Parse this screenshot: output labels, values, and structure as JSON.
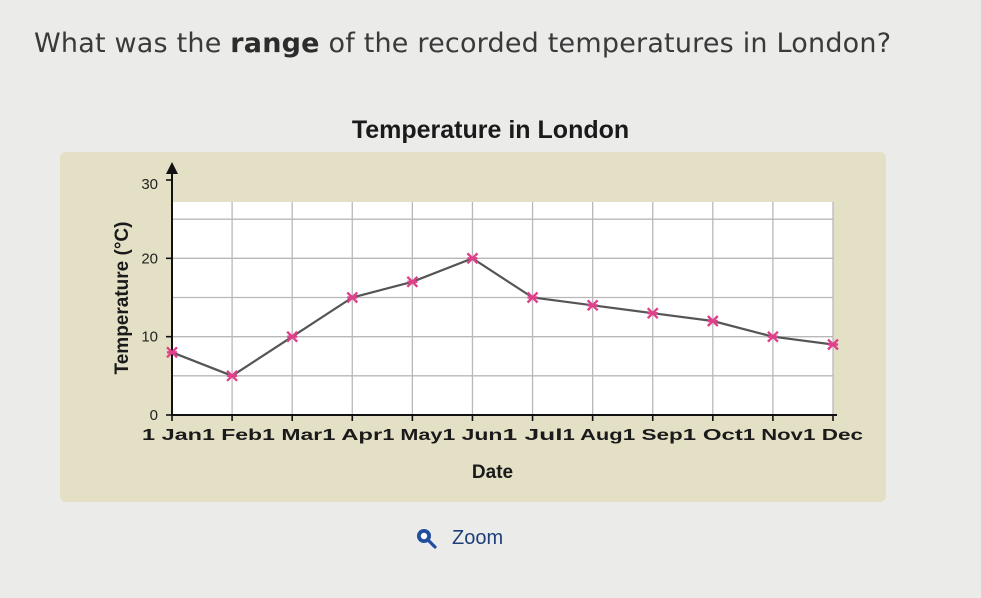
{
  "question": {
    "prefix": "What was the ",
    "bold": "range",
    "suffix": " of the recorded temperatures in London?"
  },
  "zoom": {
    "label": "Zoom",
    "icon": "magnifier-icon"
  },
  "colors": {
    "line": "#555555",
    "marker": "#e0408a",
    "grid": "#b8b8b8",
    "axis": "#111111",
    "panel": "#e4e0c6"
  },
  "chart_data": {
    "type": "line",
    "title": "Temperature in London",
    "xlabel": "Date",
    "ylabel": "Temperature (°C)",
    "categories": [
      "1 Jan",
      "1 Feb",
      "1 Mar",
      "1 Apr",
      "1 May",
      "1 Jun",
      "1 Jul",
      "1 Aug",
      "1 Sep",
      "1 Oct",
      "1 Nov",
      "1 Dec"
    ],
    "yticks": [
      0,
      10,
      20,
      30
    ],
    "ylim": [
      0,
      30
    ],
    "grid": true,
    "series": [
      {
        "values": [
          8,
          5,
          10,
          15,
          17,
          20,
          15,
          14,
          13,
          12,
          10,
          9
        ]
      }
    ]
  }
}
